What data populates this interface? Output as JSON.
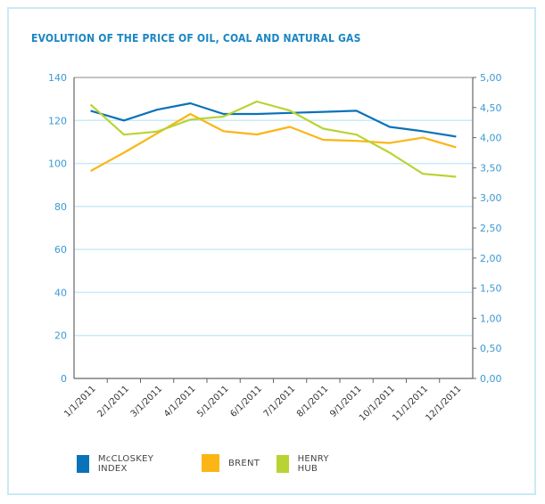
{
  "chart_data": {
    "type": "line",
    "title": "EVOLUTION OF THE PRICE OF OIL, COAL AND NATURAL GAS",
    "xlabel": "",
    "ylabel": "",
    "y2label": "",
    "categories": [
      "1/1/2011",
      "2/1/2011",
      "3/1/2011",
      "4/1/2011",
      "5/1/2011",
      "6/1/2011",
      "7/1/2011",
      "8/1/2011",
      "9/1/2011",
      "10/1/2011",
      "11/1/2011",
      "12/1/2011"
    ],
    "ylim": [
      0,
      140
    ],
    "yticks": [
      "0",
      "20",
      "40",
      "60",
      "80",
      "100",
      "120",
      "140"
    ],
    "y2lim": [
      0,
      5
    ],
    "y2ticks": [
      "0,00",
      "0,50",
      "1,00",
      "1,50",
      "2,00",
      "2,50",
      "3,00",
      "3,50",
      "4,00",
      "4,50",
      "5,00"
    ],
    "grid": true,
    "legend_position": "bottom",
    "series": [
      {
        "name": "McCLOSKEY INDEX",
        "axis": "left",
        "color": "#0a72b8",
        "values": [
          124.5,
          120,
          125,
          128,
          123,
          123,
          123.5,
          124,
          124.5,
          117,
          115,
          112.5
        ]
      },
      {
        "name": "BRENT",
        "axis": "left",
        "color": "#fbb616",
        "values": [
          96.5,
          105,
          114,
          123,
          115,
          113.5,
          117,
          111,
          110.5,
          109.5,
          112,
          107.5
        ]
      },
      {
        "name": "HENRY HUB",
        "axis": "right",
        "color": "#b8d432",
        "values": [
          4.55,
          4.05,
          4.1,
          4.3,
          4.35,
          4.6,
          4.45,
          4.15,
          4.05,
          3.75,
          3.4,
          3.35
        ]
      }
    ]
  },
  "colors": {
    "title": "#1a86c4",
    "tick_label": "#3a9ad3",
    "grid": "#c9eaf7",
    "axis": "#666666",
    "frame": "#c8eaf5"
  }
}
